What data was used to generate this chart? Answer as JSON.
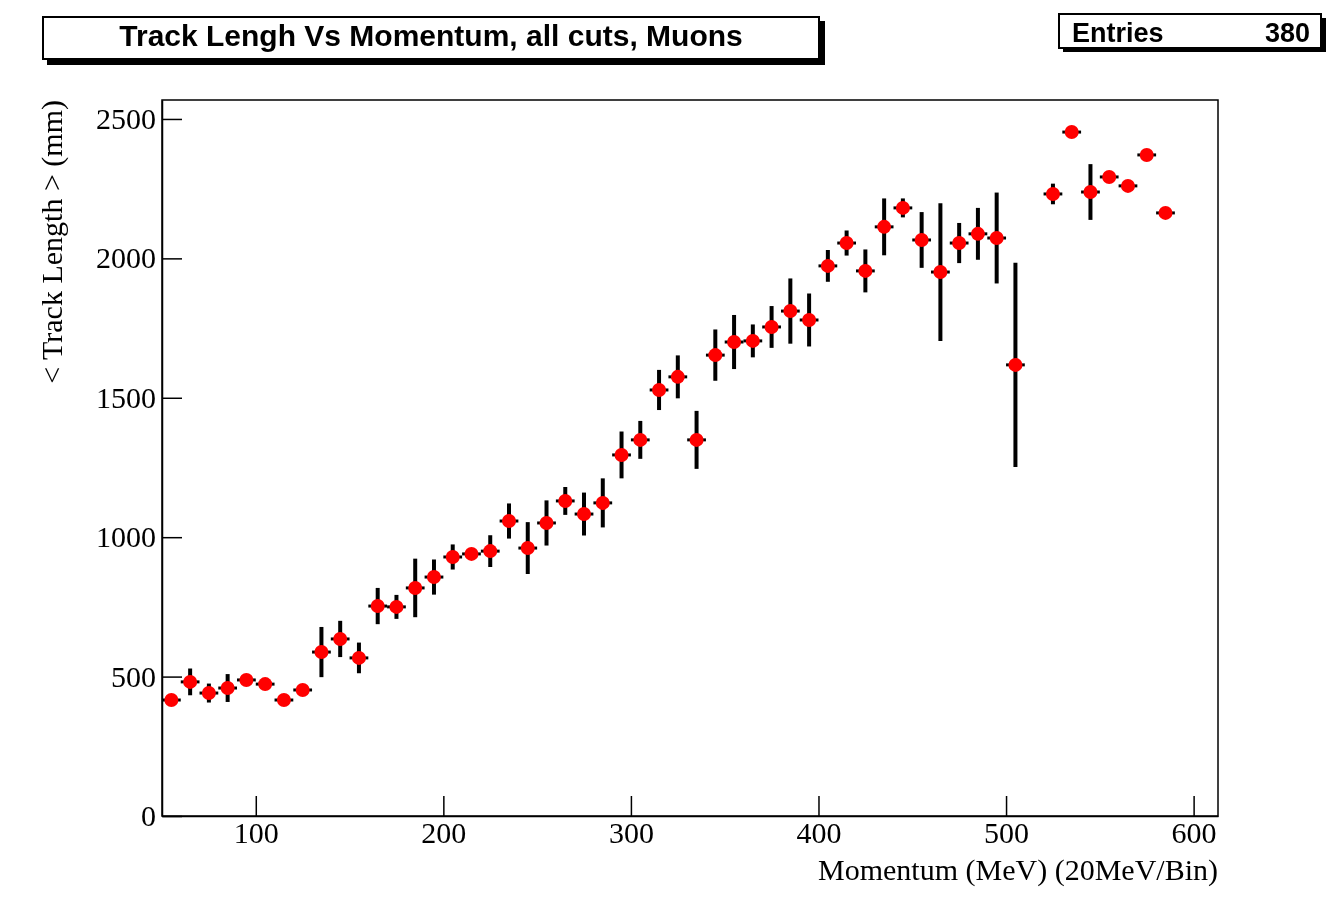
{
  "chart_data": {
    "type": "scatter",
    "title": "Track Lengh Vs Momentum, all cuts, Muons",
    "xlabel": "Momentum (MeV) (20MeV/Bin)",
    "ylabel": "< Track Length > (mm)",
    "annotations": [
      "Entries",
      "380"
    ],
    "x": [
      55,
      65,
      75,
      85,
      95,
      105,
      115,
      125,
      135,
      145,
      155,
      165,
      175,
      185,
      195,
      205,
      215,
      225,
      235,
      245,
      255,
      265,
      275,
      285,
      295,
      305,
      315,
      325,
      335,
      345,
      355,
      365,
      375,
      385,
      395,
      405,
      415,
      425,
      435,
      445,
      455,
      465,
      475,
      485,
      495,
      505,
      515,
      525,
      535,
      545,
      555,
      565,
      575,
      585
    ],
    "series": [
      {
        "color": "#ff0000",
        "values": [
          416,
          481,
          441,
          459,
          488,
          473,
          416,
          452,
          588,
          635,
          567,
          753,
          750,
          818,
          857,
          929,
          940,
          950,
          1058,
          961,
          1051,
          1130,
          1083,
          1123,
          1295,
          1349,
          1528,
          1575,
          1349,
          1653,
          1700,
          1704,
          1754,
          1811,
          1779,
          1973,
          2055,
          1955,
          2113,
          2181,
          2066,
          1951,
          2055,
          2088,
          2073,
          1618,
          null,
          2231,
          2453,
          2238,
          2292,
          2260,
          2371,
          2163
        ],
        "errors": [
          null,
          48,
          34,
          50,
          null,
          null,
          null,
          null,
          90,
          65,
          55,
          65,
          43,
          105,
          63,
          45,
          10,
          57,
          63,
          93,
          81,
          50,
          77,
          88,
          84,
          68,
          72,
          77,
          104,
          92,
          97,
          59,
          75,
          117,
          95,
          57,
          45,
          77,
          102,
          34,
          100,
          247,
          72,
          93,
          163,
          366,
          null,
          37,
          null,
          100,
          null,
          null,
          null,
          null
        ],
        "xerrors": [
          5,
          5,
          5,
          5,
          5,
          5,
          5,
          5,
          5,
          5,
          5,
          5,
          5,
          5,
          5,
          5,
          5,
          5,
          5,
          5,
          5,
          5,
          5,
          5,
          5,
          5,
          5,
          5,
          5,
          5,
          5,
          5,
          5,
          5,
          5,
          5,
          5,
          5,
          5,
          5,
          5,
          5,
          5,
          5,
          5,
          5,
          null,
          5,
          5,
          5,
          5,
          5,
          5,
          5
        ]
      }
    ],
    "marker": "circle",
    "xlim": [
      50,
      613
    ],
    "ylim": [
      0,
      2568
    ],
    "xticks": [
      100,
      200,
      300,
      400,
      500,
      600
    ],
    "yticks": [
      0,
      500,
      1000,
      1500,
      2000,
      2500
    ]
  }
}
